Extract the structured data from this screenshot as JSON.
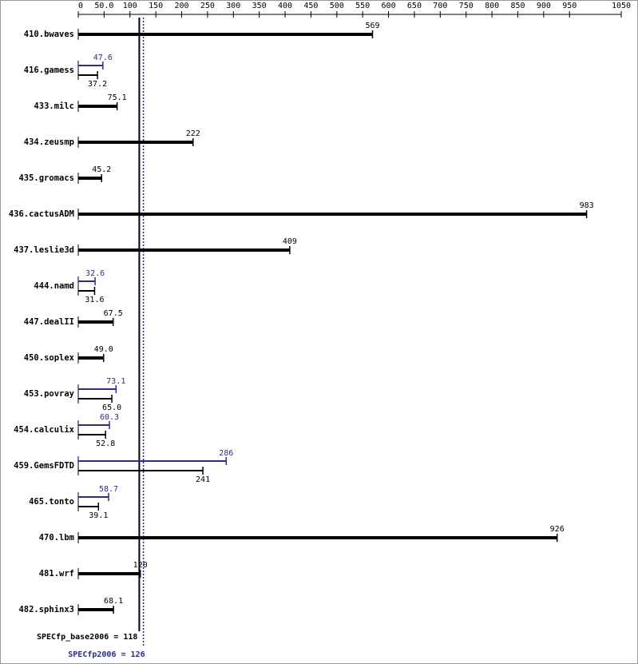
{
  "chart_data": {
    "type": "bar",
    "categories": [
      "410.bwaves",
      "416.gamess",
      "433.milc",
      "434.zeusmp",
      "435.gromacs",
      "436.cactusADM",
      "437.leslie3d",
      "444.namd",
      "447.dealII",
      "450.soplex",
      "453.povray",
      "454.calculix",
      "459.GemsFDTD",
      "465.tonto",
      "470.lbm",
      "481.wrf",
      "482.sphinx3"
    ],
    "series": [
      {
        "color": "#000000",
        "values": [
          569,
          37.2,
          75.1,
          222,
          45.2,
          983,
          409,
          31.6,
          67.5,
          49,
          65,
          52.8,
          241,
          39.1,
          926,
          120,
          68.1
        ],
        "value_labels": [
          "569",
          "37.2",
          "75.1",
          "222",
          "45.2",
          "983",
          "409",
          "31.6",
          "67.5",
          "49.0",
          "65.0",
          "52.8",
          "241",
          "39.1",
          "926",
          "120",
          "68.1"
        ]
      },
      {
        "color": "#2a2aa0",
        "values": [
          null,
          47.6,
          null,
          null,
          null,
          null,
          null,
          32.6,
          null,
          null,
          73.1,
          60.3,
          286,
          58.7,
          null,
          null,
          null
        ],
        "value_labels": [
          null,
          "47.6",
          null,
          null,
          null,
          null,
          null,
          "32.6",
          null,
          null,
          "73.1",
          "60.3",
          "286",
          "58.7",
          null,
          null,
          null
        ]
      }
    ],
    "xlim": [
      0,
      1050
    ],
    "xticks": [
      0,
      {
        "value": 50,
        "label": "50.0"
      },
      100,
      150,
      200,
      250,
      300,
      350,
      400,
      450,
      500,
      550,
      600,
      650,
      700,
      750,
      800,
      850,
      900,
      950,
      1050
    ],
    "summary": [
      {
        "label": "SPECfp_base2006 = 118",
        "value": 118,
        "color": "#000000"
      },
      {
        "label": "SPECfp2006 = 126",
        "value": 126,
        "color": "#2a2aa0"
      }
    ]
  }
}
